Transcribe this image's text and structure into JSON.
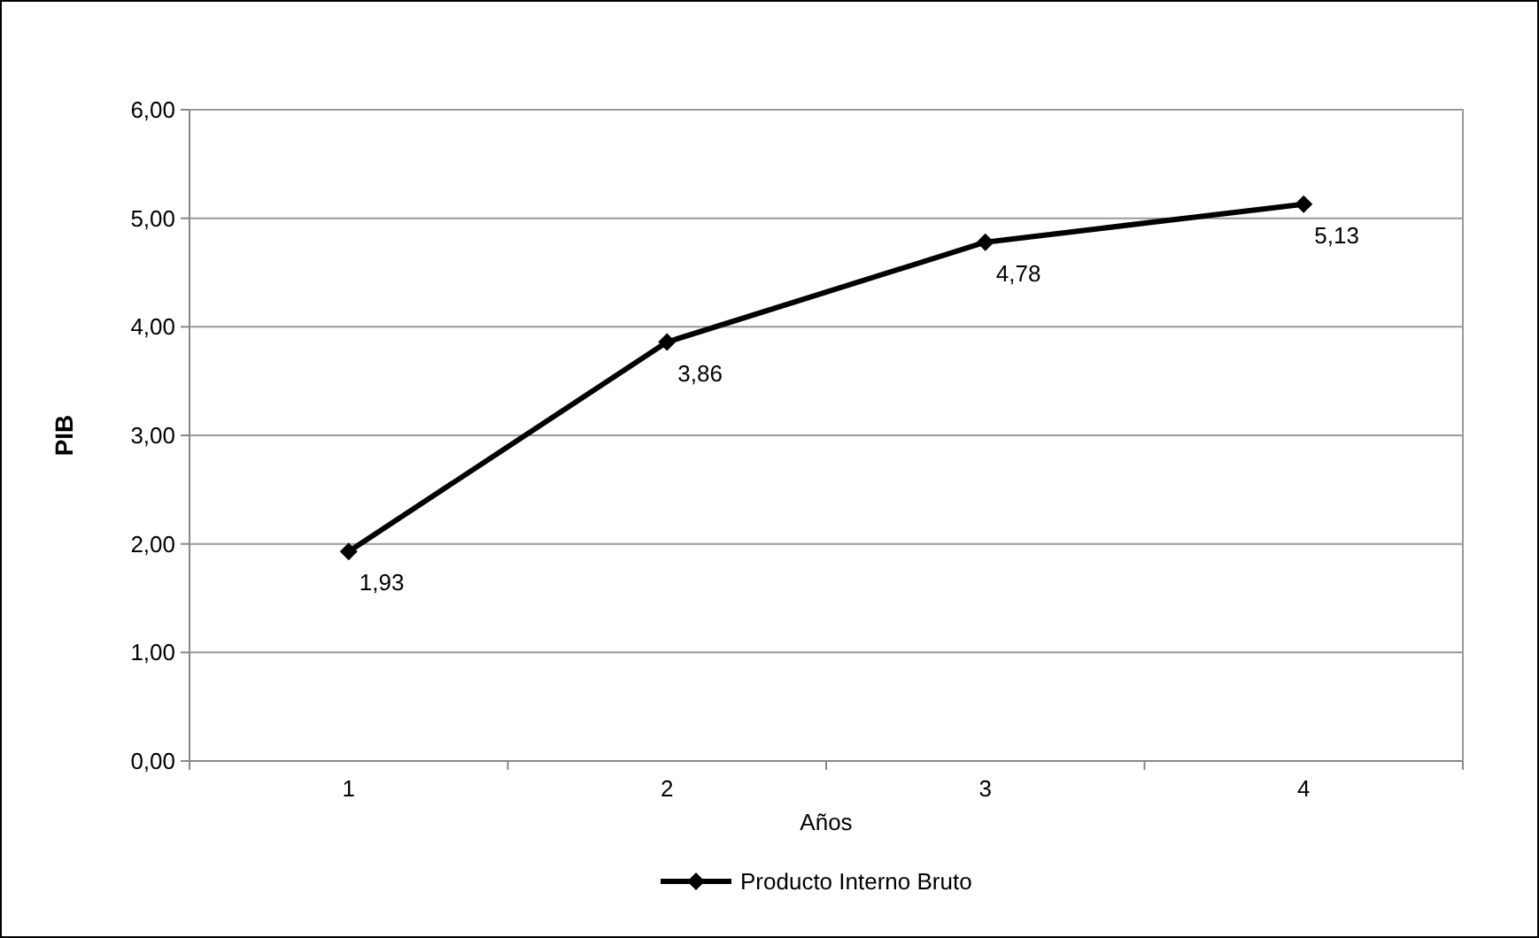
{
  "chart_data": {
    "type": "line",
    "xlabel": "Años",
    "ylabel": "PIB",
    "categories": [
      "1",
      "2",
      "3",
      "4"
    ],
    "series": [
      {
        "name": "Producto Interno Bruto",
        "color": "#000000",
        "values": [
          1.93,
          3.86,
          4.78,
          5.13
        ],
        "value_labels": [
          "1,93",
          "3,86",
          "4,78",
          "5,13"
        ]
      }
    ],
    "ylim": [
      0,
      6
    ],
    "yticks": [
      {
        "value": 0,
        "label": "0,00"
      },
      {
        "value": 1,
        "label": "1,00"
      },
      {
        "value": 2,
        "label": "2,00"
      },
      {
        "value": 3,
        "label": "3,00"
      },
      {
        "value": 4,
        "label": "4,00"
      },
      {
        "value": 5,
        "label": "5,00"
      },
      {
        "value": 6,
        "label": "6,00"
      }
    ],
    "grid": "y",
    "legend": "bottom",
    "marker": "diamond",
    "line_style": "solid"
  }
}
